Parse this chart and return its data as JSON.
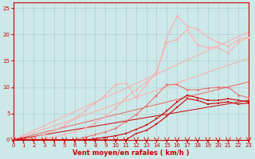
{
  "bg_color": "#cce8e8",
  "grid_color": "#aacccc",
  "line_color_dark": "#cc0000",
  "line_color_mid": "#ee6666",
  "line_color_light": "#ffaaaa",
  "xlabel": "Vent moyen/en rafales ( km/h )",
  "xlabel_color": "#cc0000",
  "tick_color": "#cc0000",
  "spine_color": "#cc0000",
  "xlim": [
    0,
    23
  ],
  "ylim": [
    0,
    26
  ],
  "xticks": [
    0,
    1,
    2,
    3,
    4,
    5,
    6,
    7,
    8,
    9,
    10,
    11,
    12,
    13,
    14,
    15,
    16,
    17,
    18,
    19,
    20,
    21,
    22,
    23
  ],
  "yticks": [
    0,
    5,
    10,
    15,
    20,
    25
  ],
  "x_vals": [
    0,
    1,
    2,
    3,
    4,
    5,
    6,
    7,
    8,
    9,
    10,
    11,
    12,
    13,
    14,
    15,
    16,
    17,
    18,
    19,
    20,
    21,
    22,
    23
  ],
  "ref1_end": 7.5,
  "ref2_end": 11.0,
  "ref3_end": 15.5,
  "ref4_end": 20.5,
  "data_dark1_y": [
    0,
    0,
    0,
    0,
    0,
    0,
    0,
    0,
    0,
    0,
    0,
    0,
    1.2,
    1.8,
    3.0,
    4.5,
    6.2,
    7.8,
    7.5,
    6.8,
    7.0,
    7.2,
    6.8,
    7.0
  ],
  "data_dark2_y": [
    0,
    0,
    0,
    0,
    0,
    0,
    0,
    0,
    0.2,
    0.5,
    0.8,
    1.2,
    2.0,
    2.8,
    4.0,
    5.5,
    7.2,
    8.5,
    8.0,
    7.5,
    7.5,
    7.8,
    7.5,
    7.2
  ],
  "data_mid1_y": [
    0,
    0,
    0,
    0,
    0,
    0,
    0,
    0.5,
    1.0,
    1.5,
    2.2,
    3.5,
    4.8,
    6.5,
    8.5,
    10.5,
    10.5,
    9.5,
    9.5,
    9.8,
    10.0,
    10.0,
    8.5,
    8.0
  ],
  "data_light1_y": [
    0,
    0,
    0,
    0.2,
    0.5,
    1.0,
    1.5,
    2.2,
    3.2,
    4.5,
    6.0,
    8.0,
    9.5,
    11.0,
    12.5,
    19.5,
    23.5,
    21.5,
    21.0,
    19.5,
    18.5,
    17.8,
    19.0,
    19.5
  ],
  "data_light2_y": [
    0,
    0,
    0.5,
    1.0,
    1.8,
    2.8,
    4.0,
    5.5,
    7.0,
    8.5,
    10.5,
    10.8,
    8.0,
    10.5,
    13.0,
    18.5,
    19.0,
    21.0,
    18.0,
    17.5,
    17.5,
    16.5,
    18.5,
    19.5
  ]
}
